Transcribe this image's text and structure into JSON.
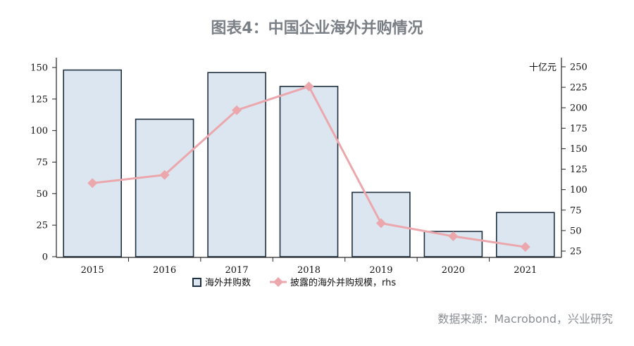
{
  "title": "图表4：中国企业海外并购情况",
  "source": "数据来源：Macrobond，兴业研究",
  "colors": {
    "bar_fill": "#dce6f0",
    "bar_stroke": "#1f3040",
    "line": "#eca7ad",
    "axis": "#222222",
    "title": "#7a7f86"
  },
  "chart_data": {
    "type": "bar",
    "categories": [
      "2015",
      "2016",
      "2017",
      "2018",
      "2019",
      "2020",
      "2021"
    ],
    "series": [
      {
        "name": "海外并购数",
        "type": "bar",
        "axis": "left",
        "values": [
          148,
          109,
          146,
          135,
          51,
          20,
          35
        ]
      },
      {
        "name": "披露的海外并购规模，rhs",
        "type": "line",
        "marker": "diamond",
        "axis": "right",
        "values": [
          108,
          118,
          197,
          226,
          59,
          43,
          30
        ]
      }
    ],
    "y_left": {
      "ylim": [
        0,
        150
      ],
      "ticks": [
        0,
        25,
        50,
        75,
        100,
        125,
        150
      ]
    },
    "y_right": {
      "unit_label": "十亿元",
      "ylim": [
        15,
        250
      ],
      "ticks": [
        25,
        50,
        75,
        100,
        125,
        150,
        175,
        200,
        225,
        250
      ]
    },
    "legend": "bottom",
    "grid": false
  }
}
